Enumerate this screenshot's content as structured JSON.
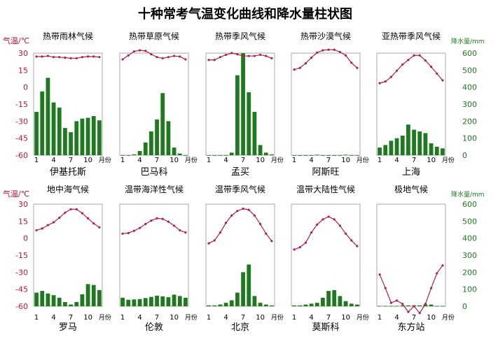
{
  "title": "十种常考气温变化曲线和降水量柱状图",
  "colors": {
    "temp_line": "#b0204a",
    "temp_axis_text": "#c0143c",
    "precip_bar": "#1f7a1f",
    "precip_axis_text": "#1f7a1f",
    "frame": "#aaaaaa"
  },
  "axes": {
    "temp_label": "气温/℃",
    "precip_label": "降水量/mm",
    "temp_ticks": [
      "30",
      "15",
      "0",
      "-15",
      "-30",
      "-45",
      "-60"
    ],
    "precip_ticks": [
      "600",
      "500",
      "400",
      "300",
      "200",
      "100",
      "0"
    ],
    "month_ticks": [
      "1",
      "4",
      "7",
      "10"
    ],
    "month_unit": "月份"
  },
  "chart_data": [
    {
      "type": "bar+line",
      "title": "热带雨林气候",
      "station": "伊基托斯",
      "x": [
        1,
        2,
        3,
        4,
        5,
        6,
        7,
        8,
        9,
        10,
        11,
        12
      ],
      "ylim_temp": [
        -60,
        30
      ],
      "ylim_precip": [
        0,
        600
      ],
      "temperature_c": [
        27,
        27,
        27.5,
        26.5,
        26.5,
        26,
        25.5,
        25.5,
        26.5,
        27,
        27,
        26.5
      ],
      "precipitation_mm": [
        255,
        375,
        455,
        310,
        280,
        160,
        135,
        200,
        215,
        220,
        230,
        205
      ]
    },
    {
      "type": "bar+line",
      "title": "热带草原气候",
      "station": "巴马科",
      "x": [
        1,
        2,
        3,
        4,
        5,
        6,
        7,
        8,
        9,
        10,
        11,
        12
      ],
      "ylim_temp": [
        -60,
        30
      ],
      "ylim_precip": [
        0,
        600
      ],
      "temperature_c": [
        24.5,
        28,
        31.5,
        32.5,
        32,
        29,
        26.5,
        25.5,
        26.5,
        27.5,
        27,
        24.5
      ],
      "precipitation_mm": [
        0,
        0,
        5,
        25,
        75,
        140,
        210,
        365,
        200,
        45,
        10,
        0
      ]
    },
    {
      "type": "bar+line",
      "title": "热带季风气候",
      "station": "孟买",
      "x": [
        1,
        2,
        3,
        4,
        5,
        6,
        7,
        8,
        9,
        10,
        11,
        12
      ],
      "ylim_temp": [
        -60,
        30
      ],
      "ylim_precip": [
        0,
        600
      ],
      "temperature_c": [
        24,
        24,
        26.5,
        28.5,
        30,
        29,
        27.5,
        27.5,
        27.5,
        28.5,
        27.5,
        25.5
      ],
      "precipitation_mm": [
        0,
        0,
        0,
        0,
        15,
        470,
        620,
        370,
        255,
        60,
        15,
        5
      ]
    },
    {
      "type": "bar+line",
      "title": "热带沙漠气候",
      "station": "阿斯旺",
      "x": [
        1,
        2,
        3,
        4,
        5,
        6,
        7,
        8,
        9,
        10,
        11,
        12
      ],
      "ylim_temp": [
        -60,
        30
      ],
      "ylim_precip": [
        0,
        600
      ],
      "temperature_c": [
        15.5,
        17,
        21,
        26,
        30.5,
        32.5,
        33,
        33,
        31,
        28,
        21.5,
        17
      ],
      "precipitation_mm": [
        0,
        0,
        0,
        0,
        3,
        0,
        0,
        0,
        0,
        3,
        0,
        0
      ]
    },
    {
      "type": "bar+line",
      "title": "亚热带季风气候",
      "station": "上海",
      "x": [
        1,
        2,
        3,
        4,
        5,
        6,
        7,
        8,
        9,
        10,
        11,
        12
      ],
      "ylim_temp": [
        -60,
        30
      ],
      "ylim_precip": [
        0,
        600
      ],
      "temperature_c": [
        3.5,
        5,
        9,
        14.5,
        20,
        24,
        28,
        28,
        23.5,
        18,
        12,
        6
      ],
      "precipitation_mm": [
        45,
        60,
        85,
        100,
        115,
        180,
        150,
        140,
        130,
        70,
        50,
        40
      ]
    },
    {
      "type": "bar+line",
      "title": "地中海气候",
      "station": "罗马",
      "x": [
        1,
        2,
        3,
        4,
        5,
        6,
        7,
        8,
        9,
        10,
        11,
        12
      ],
      "ylim_temp": [
        -60,
        30
      ],
      "ylim_precip": [
        0,
        600
      ],
      "temperature_c": [
        7,
        8.5,
        11.5,
        14,
        18,
        22.5,
        25.5,
        25.5,
        22,
        17.5,
        13,
        9.5
      ],
      "precipitation_mm": [
        80,
        90,
        75,
        65,
        50,
        25,
        10,
        25,
        70,
        130,
        125,
        95
      ]
    },
    {
      "type": "bar+line",
      "title": "温带海洋性气候",
      "station": "伦敦",
      "x": [
        1,
        2,
        3,
        4,
        5,
        6,
        7,
        8,
        9,
        10,
        11,
        12
      ],
      "ylim_temp": [
        -60,
        30
      ],
      "ylim_precip": [
        0,
        600
      ],
      "temperature_c": [
        4,
        4.5,
        6.5,
        9,
        12.5,
        15.5,
        17.5,
        17,
        14.5,
        11,
        7,
        5
      ],
      "precipitation_mm": [
        50,
        38,
        40,
        42,
        48,
        55,
        62,
        58,
        53,
        68,
        60,
        50
      ]
    },
    {
      "type": "bar+line",
      "title": "温带季风气候",
      "station": "北京",
      "x": [
        1,
        2,
        3,
        4,
        5,
        6,
        7,
        8,
        9,
        10,
        11,
        12
      ],
      "ylim_temp": [
        -60,
        30
      ],
      "ylim_precip": [
        0,
        600
      ],
      "temperature_c": [
        -4.5,
        -2,
        5,
        13.5,
        20,
        24,
        26,
        25,
        20,
        12.5,
        4,
        -2.5
      ],
      "precipitation_mm": [
        5,
        5,
        10,
        20,
        35,
        80,
        200,
        245,
        60,
        20,
        10,
        5
      ]
    },
    {
      "type": "bar+line",
      "title": "温带大陆性气候",
      "station": "莫斯科",
      "x": [
        1,
        2,
        3,
        4,
        5,
        6,
        7,
        8,
        9,
        10,
        11,
        12
      ],
      "ylim_temp": [
        -60,
        30
      ],
      "ylim_precip": [
        0,
        600
      ],
      "temperature_c": [
        -10,
        -8,
        -4,
        5,
        12,
        16.5,
        19,
        16.5,
        11,
        4,
        -2,
        -7
      ],
      "precipitation_mm": [
        5,
        5,
        10,
        15,
        20,
        50,
        90,
        95,
        60,
        30,
        15,
        10
      ]
    },
    {
      "type": "bar+line",
      "title": "极地气候",
      "station": "东方站",
      "x": [
        1,
        2,
        3,
        4,
        5,
        6,
        7,
        8,
        9,
        10,
        11,
        12
      ],
      "ylim_temp": [
        -60,
        30
      ],
      "ylim_precip": [
        0,
        600
      ],
      "temperature_c": [
        -32,
        -44,
        -57,
        -55,
        -58,
        -65,
        -60,
        -66,
        -58,
        -44,
        -31,
        -24
      ],
      "precipitation_mm": [
        2,
        2,
        2,
        2,
        5,
        5,
        5,
        5,
        10,
        10,
        2,
        2
      ]
    }
  ]
}
